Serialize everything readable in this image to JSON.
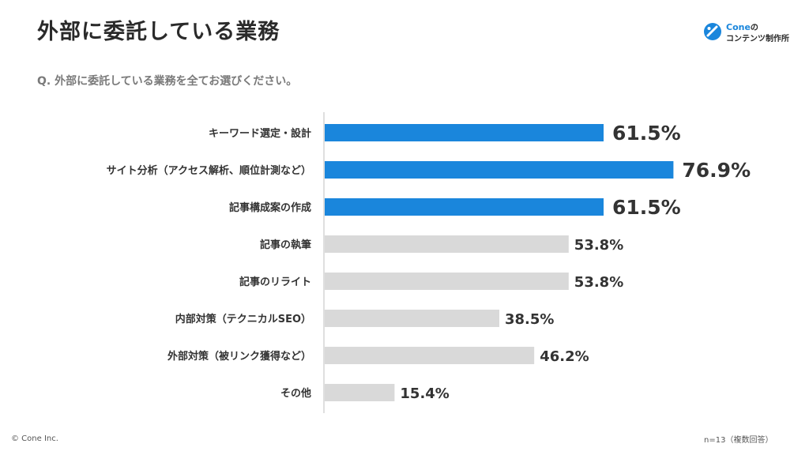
{
  "header": {
    "title": "外部に委託している業務",
    "logo": {
      "brand": "Cone",
      "no": "の",
      "subtitle": "コンテンツ制作所",
      "icon": "cone-logo-icon"
    }
  },
  "question": "Q. 外部に委託している業務を全てお選びください。",
  "footer": {
    "copyright": "© Cone Inc.",
    "note": "n=13（複数回答）"
  },
  "colors": {
    "highlight": "#1a86dc",
    "normal": "#d9d9d9",
    "axis": "#bfbfbf",
    "text": "#333333"
  },
  "chart_data": {
    "type": "bar",
    "orientation": "horizontal",
    "categories": [
      "キーワード選定・設計",
      "サイト分析（アクセス解析、順位計測など）",
      "記事構成案の作成",
      "記事の執筆",
      "記事のリライト",
      "内部対策（テクニカルSEO）",
      "外部対策（被リンク獲得など）",
      "その他"
    ],
    "values": [
      61.5,
      76.9,
      61.5,
      53.8,
      53.8,
      38.5,
      46.2,
      15.4
    ],
    "value_labels": [
      "61.5%",
      "76.9%",
      "61.5%",
      "53.8%",
      "53.8%",
      "38.5%",
      "46.2%",
      "15.4%"
    ],
    "highlighted": [
      true,
      true,
      true,
      false,
      false,
      false,
      false,
      false
    ],
    "xlim": [
      0,
      100
    ],
    "grid": false,
    "legend": "none"
  }
}
